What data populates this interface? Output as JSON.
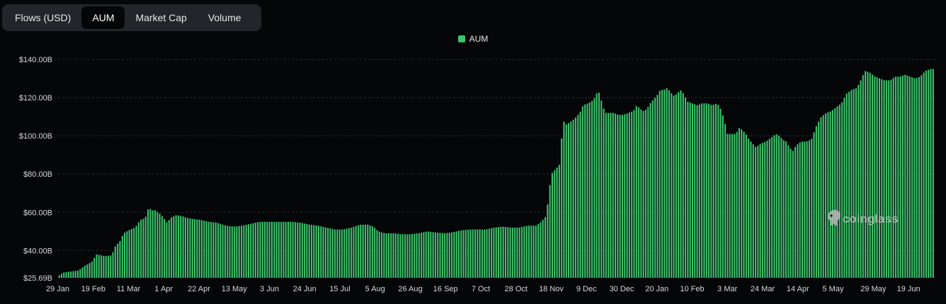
{
  "tabs": [
    {
      "label": "Flows (USD)",
      "active": false
    },
    {
      "label": "AUM",
      "active": true
    },
    {
      "label": "Market Cap",
      "active": false
    },
    {
      "label": "Volume",
      "active": false
    }
  ],
  "legend": {
    "label": "AUM",
    "color": "#39c46b"
  },
  "watermark": {
    "text": "coinglass"
  },
  "colors": {
    "bar": "#39c46b",
    "background": "#050608",
    "grid": "#2a2d33"
  },
  "chart_data": {
    "type": "bar",
    "series": [
      {
        "name": "AUM"
      }
    ],
    "y_ticks": [
      "$25.69B",
      "$40.00B",
      "$60.00B",
      "$80.00B",
      "$100.00B",
      "$120.00B",
      "$140.00B"
    ],
    "y_tick_values": [
      25.69,
      40,
      60,
      80,
      100,
      120,
      140
    ],
    "ylim": [
      25.69,
      140
    ],
    "x_ticks": [
      "29 Jan",
      "19 Feb",
      "11 Mar",
      "1 Apr",
      "22 Apr",
      "13 May",
      "3 Jun",
      "24 Jun",
      "15 Jul",
      "5 Aug",
      "26 Aug",
      "16 Sep",
      "7 Oct",
      "28 Oct",
      "18 Nov",
      "9 Dec",
      "30 Dec",
      "20 Jan",
      "10 Feb",
      "3 Mar",
      "24 Mar",
      "14 Apr",
      "5 May",
      "29 May",
      "19 Jun"
    ],
    "x_tick_day_index": [
      0,
      21,
      42,
      63,
      84,
      105,
      126,
      147,
      168,
      189,
      210,
      231,
      252,
      273,
      294,
      315,
      336,
      357,
      378,
      399,
      420,
      441,
      462,
      486,
      507
    ],
    "grid": "horizontal-dashed",
    "legend_position": "top-center",
    "anchors": [
      [
        0,
        26.5
      ],
      [
        3,
        28.5
      ],
      [
        12,
        29.5
      ],
      [
        16,
        32
      ],
      [
        20,
        34
      ],
      [
        23,
        38
      ],
      [
        28,
        37
      ],
      [
        32,
        37.5
      ],
      [
        34,
        42
      ],
      [
        37,
        45
      ],
      [
        39,
        49
      ],
      [
        43,
        51
      ],
      [
        46,
        52
      ],
      [
        49,
        56
      ],
      [
        52,
        57
      ],
      [
        54,
        62.5
      ],
      [
        56,
        61
      ],
      [
        58,
        61
      ],
      [
        61,
        59
      ],
      [
        63,
        57
      ],
      [
        65,
        54.5
      ],
      [
        67,
        57
      ],
      [
        70,
        58.5
      ],
      [
        74,
        58
      ],
      [
        77,
        57
      ],
      [
        85,
        56
      ],
      [
        90,
        55
      ],
      [
        95,
        54.5
      ],
      [
        100,
        53
      ],
      [
        105,
        52.5
      ],
      [
        110,
        53
      ],
      [
        115,
        54
      ],
      [
        120,
        55
      ],
      [
        125,
        55
      ],
      [
        130,
        55
      ],
      [
        135,
        55
      ],
      [
        140,
        55
      ],
      [
        145,
        54.5
      ],
      [
        150,
        53.5
      ],
      [
        155,
        53
      ],
      [
        160,
        52
      ],
      [
        165,
        51
      ],
      [
        170,
        51
      ],
      [
        175,
        52
      ],
      [
        180,
        53.5
      ],
      [
        185,
        53.5
      ],
      [
        188,
        52.5
      ],
      [
        191,
        50
      ],
      [
        195,
        49
      ],
      [
        200,
        49
      ],
      [
        205,
        48.5
      ],
      [
        210,
        48.5
      ],
      [
        215,
        49
      ],
      [
        220,
        50
      ],
      [
        225,
        49.5
      ],
      [
        230,
        49
      ],
      [
        235,
        49.5
      ],
      [
        240,
        50.5
      ],
      [
        245,
        51
      ],
      [
        250,
        51
      ],
      [
        255,
        51
      ],
      [
        260,
        52
      ],
      [
        265,
        52.5
      ],
      [
        270,
        52
      ],
      [
        275,
        52
      ],
      [
        280,
        53
      ],
      [
        285,
        53
      ],
      [
        288,
        55
      ],
      [
        291,
        58
      ],
      [
        294,
        80
      ],
      [
        296,
        82
      ],
      [
        299,
        85
      ],
      [
        301,
        108
      ],
      [
        303,
        106
      ],
      [
        305,
        107
      ],
      [
        308,
        109
      ],
      [
        311,
        112
      ],
      [
        313,
        116
      ],
      [
        316,
        117
      ],
      [
        318,
        118
      ],
      [
        320,
        120
      ],
      [
        322,
        124
      ],
      [
        324,
        118
      ],
      [
        326,
        112
      ],
      [
        328,
        112
      ],
      [
        331,
        112
      ],
      [
        334,
        111
      ],
      [
        337,
        111
      ],
      [
        340,
        112
      ],
      [
        343,
        113
      ],
      [
        345,
        116
      ],
      [
        347,
        114
      ],
      [
        349,
        113
      ],
      [
        351,
        114
      ],
      [
        353,
        117
      ],
      [
        355,
        119
      ],
      [
        357,
        121
      ],
      [
        359,
        124
      ],
      [
        361,
        124
      ],
      [
        363,
        125
      ],
      [
        365,
        123
      ],
      [
        367,
        121
      ],
      [
        369,
        122
      ],
      [
        371,
        124
      ],
      [
        373,
        122
      ],
      [
        375,
        118
      ],
      [
        378,
        117
      ],
      [
        381,
        116
      ],
      [
        384,
        117
      ],
      [
        387,
        117
      ],
      [
        390,
        116
      ],
      [
        393,
        117
      ],
      [
        395,
        114
      ],
      [
        397,
        109
      ],
      [
        399,
        101
      ],
      [
        401,
        101
      ],
      [
        404,
        101
      ],
      [
        406,
        104
      ],
      [
        408,
        103
      ],
      [
        410,
        101
      ],
      [
        412,
        98
      ],
      [
        414,
        96
      ],
      [
        416,
        94
      ],
      [
        419,
        96
      ],
      [
        422,
        97
      ],
      [
        425,
        99
      ],
      [
        428,
        101
      ],
      [
        430,
        100
      ],
      [
        432,
        98
      ],
      [
        434,
        97
      ],
      [
        436,
        94
      ],
      [
        438,
        92
      ],
      [
        440,
        95
      ],
      [
        443,
        97
      ],
      [
        446,
        97
      ],
      [
        449,
        98
      ],
      [
        452,
        105
      ],
      [
        455,
        110
      ],
      [
        458,
        112
      ],
      [
        461,
        113
      ],
      [
        464,
        115
      ],
      [
        467,
        117
      ],
      [
        470,
        122
      ],
      [
        473,
        124
      ],
      [
        476,
        125
      ],
      [
        478,
        128
      ],
      [
        481,
        134
      ],
      [
        484,
        133
      ],
      [
        487,
        131
      ],
      [
        490,
        130
      ],
      [
        493,
        129
      ],
      [
        496,
        129
      ],
      [
        499,
        131
      ],
      [
        502,
        131
      ],
      [
        505,
        132
      ],
      [
        508,
        131
      ],
      [
        511,
        130
      ],
      [
        514,
        131
      ],
      [
        517,
        134
      ],
      [
        520,
        135
      ],
      [
        523,
        135
      ]
    ],
    "x_range_days": [
      0,
      523
    ]
  }
}
